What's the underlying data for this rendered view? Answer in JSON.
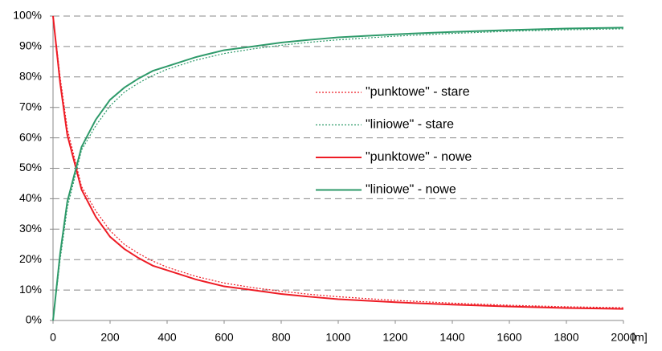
{
  "chart_data": {
    "type": "line",
    "x_label": "[m]",
    "x": [
      0,
      25,
      50,
      100,
      150,
      200,
      250,
      300,
      350,
      400,
      500,
      600,
      700,
      800,
      900,
      1000,
      1200,
      1400,
      1600,
      1800,
      2000
    ],
    "series": [
      {
        "name": "\"punktowe\" - stare",
        "color": "#ee1c25",
        "style": "dotted",
        "values": [
          100,
          80,
          63,
          44,
          36,
          29.5,
          25,
          22,
          19.5,
          17.5,
          14.5,
          12.3,
          10.8,
          9.6,
          8.6,
          7.8,
          6.6,
          5.7,
          5,
          4.5,
          4.2
        ]
      },
      {
        "name": "\"liniowe\" - stare",
        "color": "#2e9a6a",
        "style": "dotted",
        "values": [
          0,
          20,
          37,
          56,
          64,
          70.5,
          75,
          78,
          80.5,
          82.5,
          85.5,
          87.7,
          89.2,
          90.4,
          91.4,
          92.2,
          93.4,
          94.3,
          95,
          95.5,
          95.8
        ]
      },
      {
        "name": "\"punktowe\" - nowe",
        "color": "#ee1c25",
        "style": "solid",
        "values": [
          100,
          78,
          61,
          43,
          34,
          27.5,
          23.5,
          20.5,
          18,
          16.5,
          13.5,
          11.2,
          10,
          8.7,
          7.8,
          7,
          6,
          5.2,
          4.6,
          4.1,
          3.8
        ]
      },
      {
        "name": "\"liniowe\" - nowe",
        "color": "#2e9a6a",
        "style": "solid",
        "values": [
          0,
          22,
          39,
          57,
          66,
          72.5,
          76.5,
          79.5,
          82,
          83.5,
          86.5,
          88.8,
          90,
          91.3,
          92.2,
          93,
          94,
          94.8,
          95.4,
          95.9,
          96.2
        ]
      }
    ],
    "xlim": [
      0,
      2000
    ],
    "xticks": [
      0,
      200,
      400,
      600,
      800,
      1000,
      1200,
      1400,
      1600,
      1800,
      2000
    ],
    "ylim": [
      0,
      100
    ],
    "yticks": [
      {
        "value": 0,
        "label": "0%"
      },
      {
        "value": 10,
        "label": "10%"
      },
      {
        "value": 20,
        "label": "20%"
      },
      {
        "value": 30,
        "label": "30%"
      },
      {
        "value": 40,
        "label": "40%"
      },
      {
        "value": 50,
        "label": "50%"
      },
      {
        "value": 60,
        "label": "60%"
      },
      {
        "value": 70,
        "label": "70%"
      },
      {
        "value": 80,
        "label": "80%"
      },
      {
        "value": 90,
        "label": "90%"
      },
      {
        "value": 100,
        "label": "100%"
      }
    ],
    "grid": true,
    "legend": "inside"
  }
}
